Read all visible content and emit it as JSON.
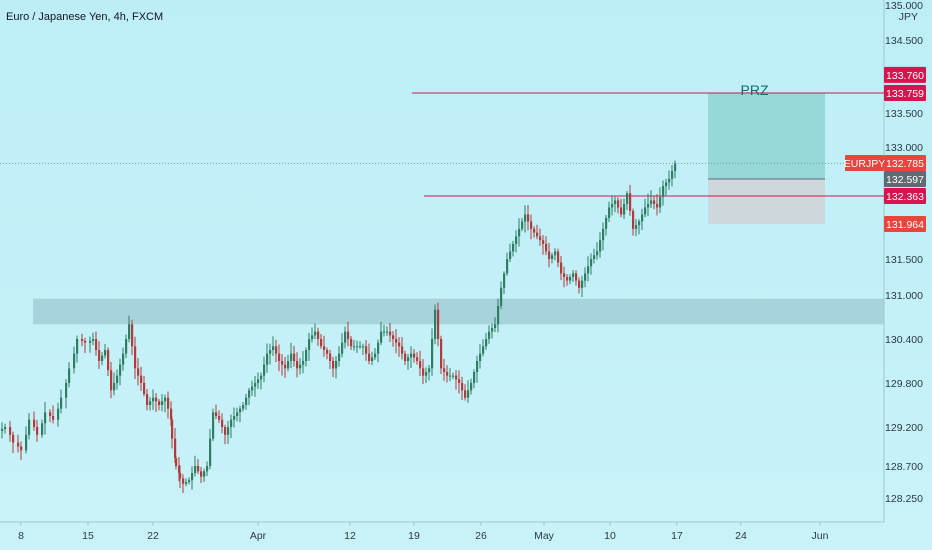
{
  "header": {
    "title": "Euro / Japanese Yen, 4h, FXCM"
  },
  "colors": {
    "background": "#bfeef7",
    "up": "#2f7d62",
    "down": "#b23a3a",
    "zone_fill": "#9cc9d3",
    "prz_fill": "#8fd3d2",
    "stop_fill": "#cfd4d8",
    "level_line": "#d6154f",
    "price_line_fill": "#5f6a73"
  },
  "chart_data": {
    "type": "candlestick",
    "title": "Euro / Japanese Yen, 4h, FXCM",
    "ylim": [
      128.0,
      135.0
    ],
    "xlim": [
      0,
      880
    ],
    "y_ticks": [
      "135.000",
      "134.500",
      "134.000",
      "133.500",
      "133.000",
      "131.500",
      "131.000",
      "130.400",
      "129.800",
      "129.200",
      "128.700",
      "128.250"
    ],
    "y_tick_values": [
      135.0,
      134.5,
      134.0,
      133.5,
      133.0,
      131.5,
      131.0,
      130.4,
      129.8,
      129.2,
      128.7,
      128.25
    ],
    "y_unit": "JPY",
    "x_ticks": [
      "8",
      "15",
      "22",
      "Apr",
      "12",
      "19",
      "26",
      "May",
      "10",
      "17",
      "24",
      "Jun"
    ],
    "x_tick_values": [
      21,
      88,
      153,
      258,
      350,
      414,
      481,
      544,
      610,
      677,
      741,
      820
    ],
    "series": [
      {
        "name": "EURJPY",
        "points": [
          [
            2,
            129.2
          ],
          [
            10,
            129.0
          ],
          [
            18,
            128.9
          ],
          [
            26,
            129.3
          ],
          [
            34,
            129.1
          ],
          [
            42,
            129.4
          ],
          [
            50,
            129.3
          ],
          [
            58,
            129.6
          ],
          [
            66,
            130.0
          ],
          [
            74,
            130.4
          ],
          [
            82,
            130.35
          ],
          [
            90,
            130.4
          ],
          [
            96,
            130.1
          ],
          [
            102,
            130.25
          ],
          [
            108,
            129.7
          ],
          [
            114,
            129.9
          ],
          [
            120,
            130.2
          ],
          [
            126,
            130.6
          ],
          [
            132,
            130.0
          ],
          [
            138,
            129.8
          ],
          [
            144,
            129.5
          ],
          [
            150,
            129.6
          ],
          [
            156,
            129.5
          ],
          [
            162,
            129.6
          ],
          [
            168,
            129.3
          ],
          [
            172,
            128.8
          ],
          [
            176,
            128.6
          ],
          [
            180,
            128.45
          ],
          [
            186,
            128.5
          ],
          [
            192,
            128.7
          ],
          [
            198,
            128.55
          ],
          [
            204,
            128.7
          ],
          [
            210,
            129.4
          ],
          [
            216,
            129.3
          ],
          [
            222,
            129.1
          ],
          [
            228,
            129.3
          ],
          [
            234,
            129.4
          ],
          [
            240,
            129.5
          ],
          [
            246,
            129.7
          ],
          [
            252,
            129.8
          ],
          [
            258,
            129.9
          ],
          [
            264,
            130.2
          ],
          [
            270,
            130.3
          ],
          [
            276,
            130.1
          ],
          [
            282,
            130.0
          ],
          [
            288,
            130.2
          ],
          [
            294,
            130.0
          ],
          [
            300,
            130.1
          ],
          [
            306,
            130.4
          ],
          [
            312,
            130.5
          ],
          [
            318,
            130.3
          ],
          [
            324,
            130.2
          ],
          [
            330,
            130.0
          ],
          [
            336,
            130.2
          ],
          [
            342,
            130.5
          ],
          [
            348,
            130.3
          ],
          [
            354,
            130.3
          ],
          [
            360,
            130.3
          ],
          [
            366,
            130.1
          ],
          [
            372,
            130.2
          ],
          [
            378,
            130.5
          ],
          [
            384,
            130.5
          ],
          [
            390,
            130.4
          ],
          [
            396,
            130.3
          ],
          [
            402,
            130.1
          ],
          [
            408,
            130.2
          ],
          [
            414,
            130.1
          ],
          [
            420,
            129.9
          ],
          [
            426,
            130.0
          ],
          [
            432,
            130.8
          ],
          [
            438,
            130.0
          ],
          [
            444,
            129.9
          ],
          [
            450,
            129.9
          ],
          [
            456,
            129.8
          ],
          [
            462,
            129.6
          ],
          [
            468,
            129.8
          ],
          [
            474,
            130.1
          ],
          [
            480,
            130.3
          ],
          [
            486,
            130.5
          ],
          [
            492,
            130.6
          ],
          [
            498,
            131.1
          ],
          [
            504,
            131.5
          ],
          [
            510,
            131.7
          ],
          [
            516,
            131.9
          ],
          [
            522,
            132.1
          ],
          [
            528,
            131.9
          ],
          [
            534,
            131.8
          ],
          [
            540,
            131.7
          ],
          [
            546,
            131.5
          ],
          [
            552,
            131.6
          ],
          [
            558,
            131.3
          ],
          [
            564,
            131.2
          ],
          [
            570,
            131.3
          ],
          [
            576,
            131.1
          ],
          [
            582,
            131.3
          ],
          [
            588,
            131.5
          ],
          [
            594,
            131.6
          ],
          [
            600,
            131.9
          ],
          [
            606,
            132.2
          ],
          [
            612,
            132.3
          ],
          [
            618,
            132.1
          ],
          [
            624,
            132.4
          ],
          [
            630,
            131.9
          ],
          [
            636,
            132.0
          ],
          [
            642,
            132.2
          ],
          [
            648,
            132.3
          ],
          [
            654,
            132.2
          ],
          [
            660,
            132.5
          ],
          [
            666,
            132.6
          ],
          [
            672,
            132.78
          ]
        ]
      }
    ],
    "support_zone": {
      "low": 130.6,
      "high": 130.95,
      "x_from": 33,
      "x_to": 884
    },
    "prz": {
      "label": "PRZ",
      "top": 133.759,
      "entry": 132.597,
      "stop": 131.964,
      "x_from": 708,
      "x_to": 825
    },
    "level_lines": [
      {
        "value": 133.759,
        "x_from": 412,
        "x_to": 884
      },
      {
        "value": 132.363,
        "x_from": 424,
        "x_to": 884
      }
    ],
    "price_tags": [
      {
        "text": "133.760",
        "value": 133.76,
        "color": "#d6154f"
      },
      {
        "text": "133.759",
        "value": 133.759,
        "color": "#d6154f"
      },
      {
        "text": "132.785",
        "value": 132.785,
        "color": "#e8453c"
      },
      {
        "text": "132.597",
        "value": 132.597,
        "color": "#5f6a73"
      },
      {
        "text": "132.363",
        "value": 132.363,
        "color": "#d6154f"
      },
      {
        "text": "131.964",
        "value": 131.964,
        "color": "#e8453c"
      }
    ],
    "symbol_tag": {
      "text": "EURJPY",
      "value": 132.785,
      "color": "#e8453c"
    }
  }
}
